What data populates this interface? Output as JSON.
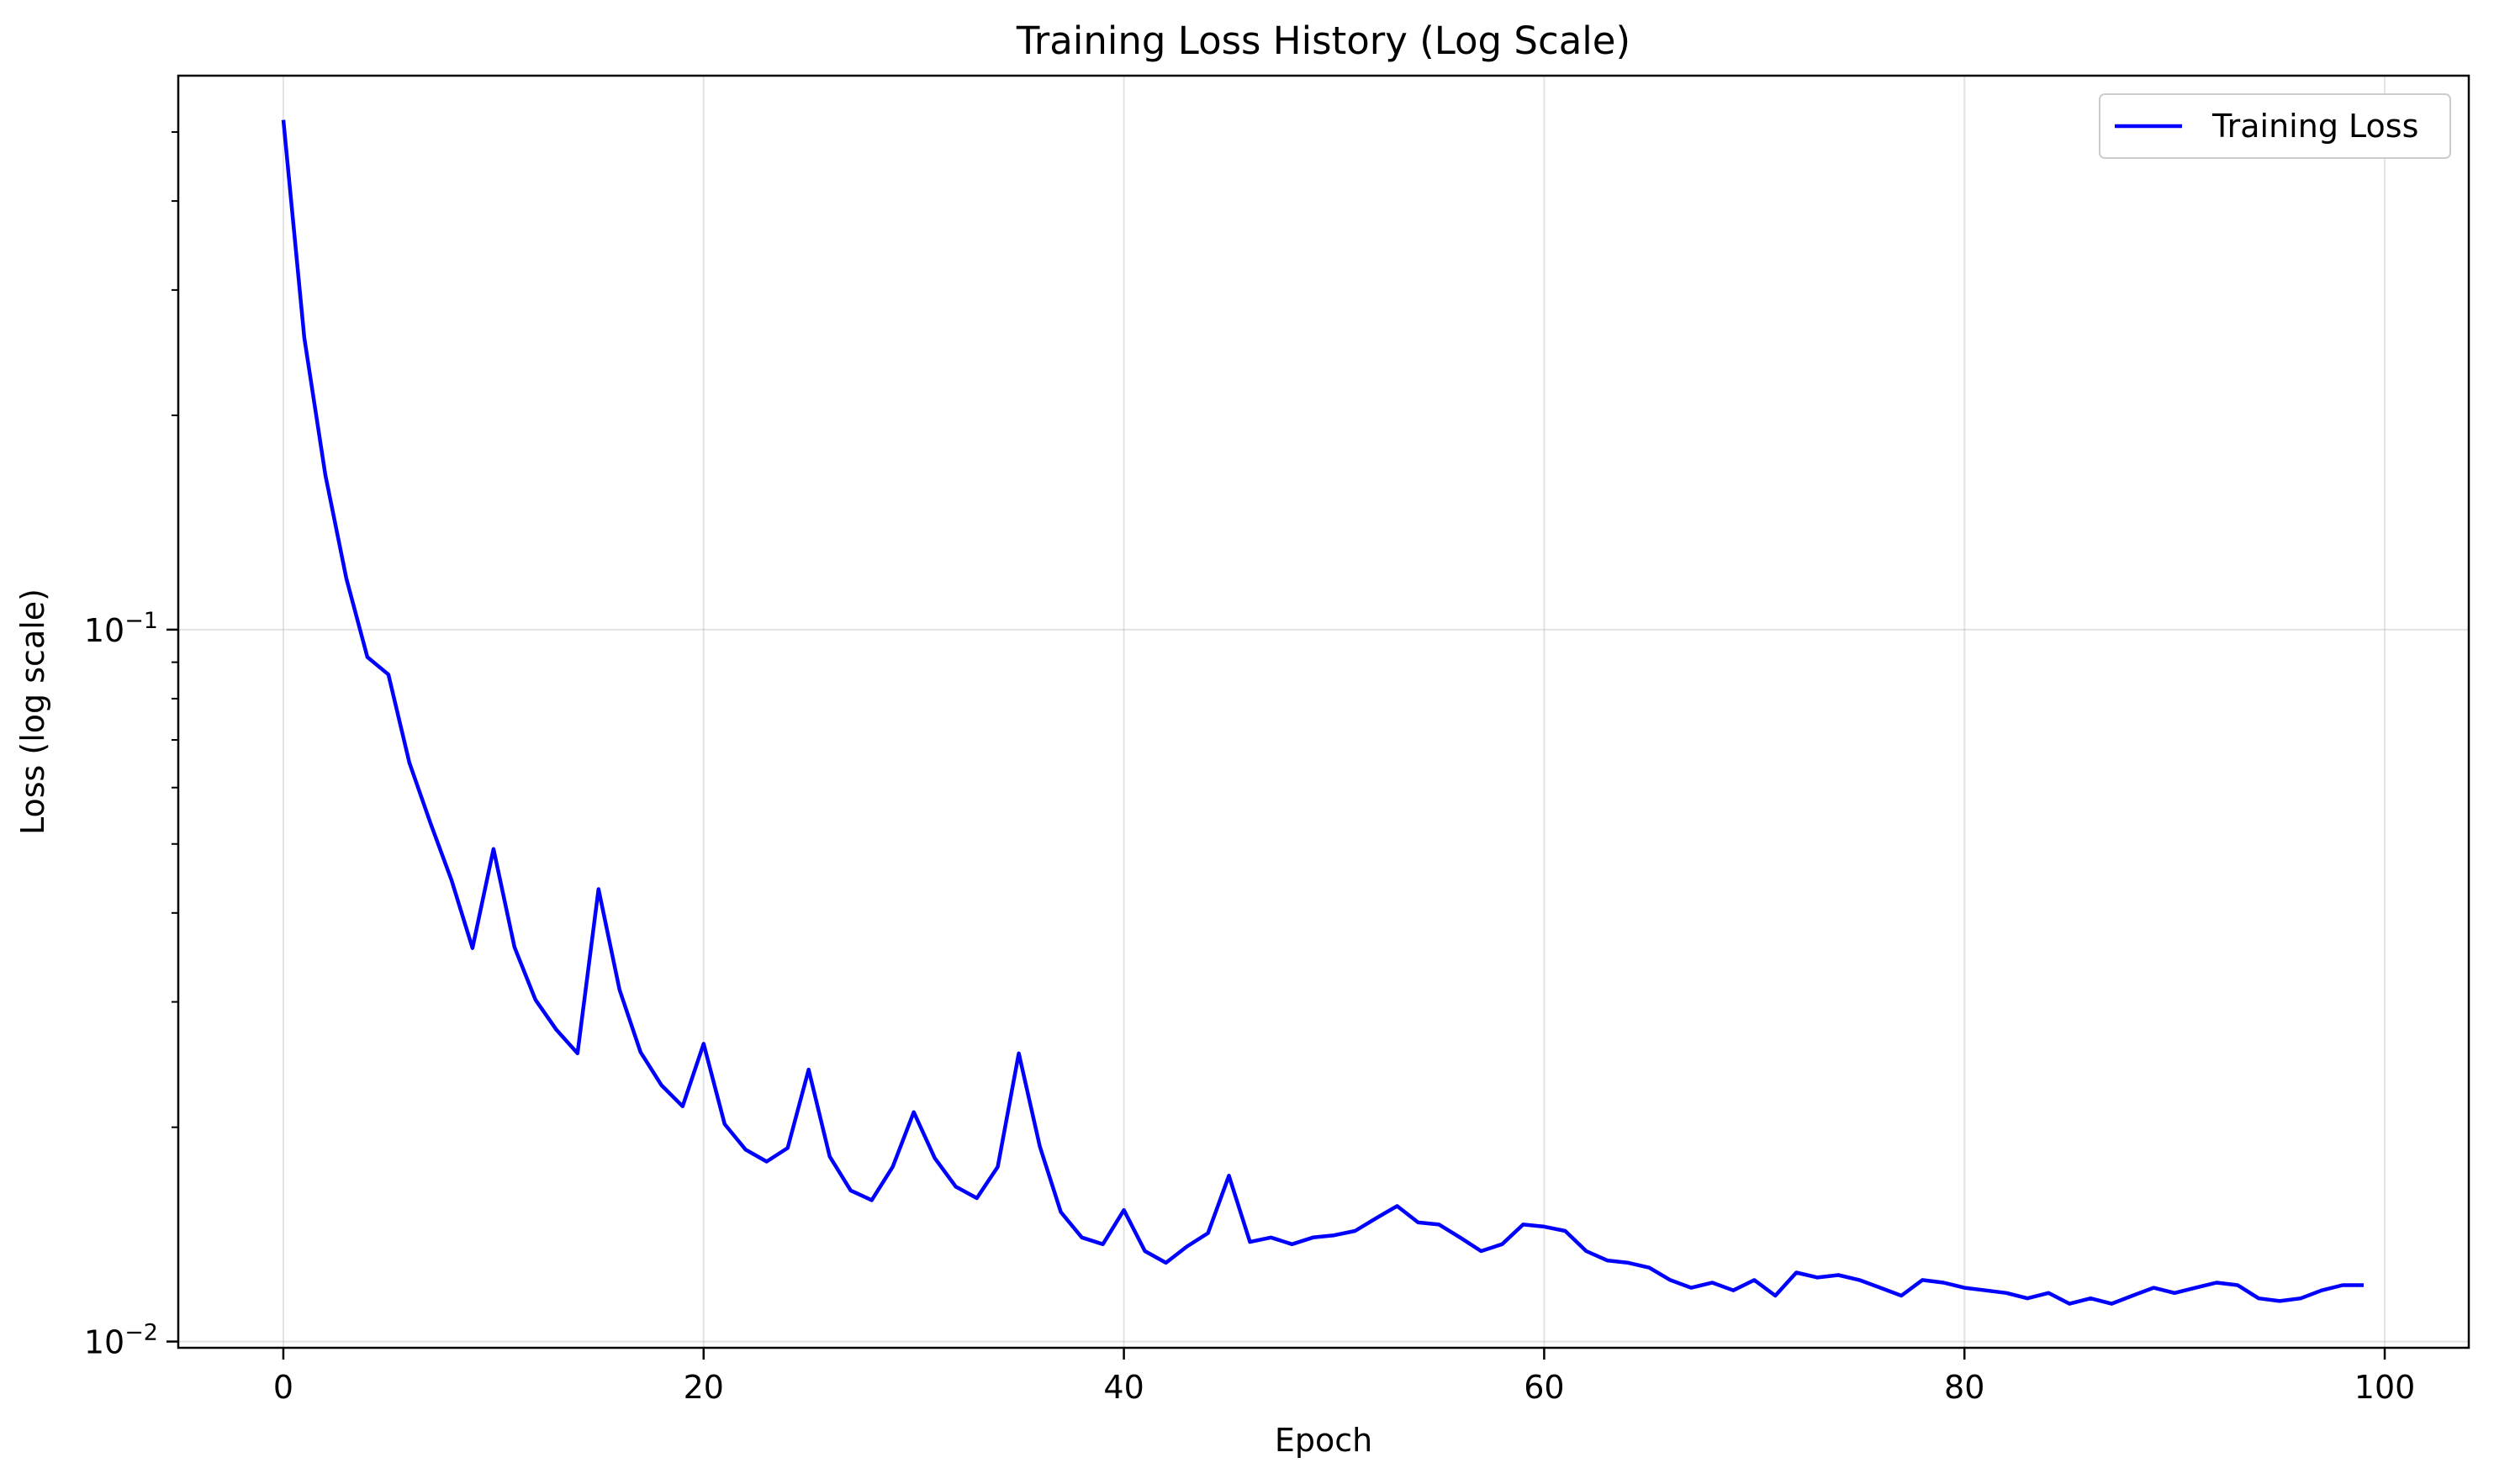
{
  "chart_data": {
    "type": "line",
    "title": "Training Loss History (Log Scale)",
    "xlabel": "Epoch",
    "ylabel": "Loss (log scale)",
    "y_scale": "log",
    "xlim": [
      -5,
      104
    ],
    "ylim": [
      0.0098,
      0.6
    ],
    "x_ticks": [
      0,
      20,
      40,
      60,
      80,
      100
    ],
    "y_ticks": [
      {
        "value": 0.1,
        "base": "10",
        "exp": "−1"
      },
      {
        "value": 0.01,
        "base": "10",
        "exp": "−2"
      }
    ],
    "grid": true,
    "legend_position": "top-right",
    "series": [
      {
        "name": "Training Loss",
        "color": "#0000ff",
        "x": [
          0,
          1,
          2,
          3,
          4,
          5,
          6,
          7,
          8,
          9,
          10,
          11,
          12,
          13,
          14,
          15,
          16,
          17,
          18,
          19,
          20,
          21,
          22,
          23,
          24,
          25,
          26,
          27,
          28,
          29,
          30,
          31,
          32,
          33,
          34,
          35,
          36,
          37,
          38,
          39,
          40,
          41,
          42,
          43,
          44,
          45,
          46,
          47,
          48,
          49,
          50,
          51,
          52,
          53,
          54,
          55,
          56,
          57,
          58,
          59,
          60,
          61,
          62,
          63,
          64,
          65,
          66,
          67,
          68,
          69,
          70,
          71,
          72,
          73,
          74,
          75,
          76,
          77,
          78,
          79,
          80,
          81,
          82,
          83,
          84,
          85,
          86,
          87,
          88,
          89,
          90,
          91,
          92,
          93,
          94,
          95,
          96,
          97,
          98,
          99
        ],
        "values": [
          0.52,
          0.257,
          0.165,
          0.118,
          0.0915,
          0.0865,
          0.065,
          0.0535,
          0.0445,
          0.0357,
          0.0492,
          0.0358,
          0.0302,
          0.0274,
          0.0254,
          0.0432,
          0.0312,
          0.0255,
          0.0229,
          0.0214,
          0.0262,
          0.0202,
          0.0186,
          0.0179,
          0.0187,
          0.0241,
          0.0182,
          0.0163,
          0.0158,
          0.0176,
          0.021,
          0.0181,
          0.0165,
          0.0159,
          0.0176,
          0.0254,
          0.0188,
          0.0152,
          0.014,
          0.0137,
          0.0153,
          0.0134,
          0.0129,
          0.0136,
          0.0142,
          0.0171,
          0.0138,
          0.014,
          0.0137,
          0.014,
          0.0141,
          0.0143,
          0.0149,
          0.0155,
          0.0147,
          0.0146,
          0.014,
          0.0134,
          0.0137,
          0.0146,
          0.0145,
          0.0143,
          0.0134,
          0.013,
          0.0129,
          0.0127,
          0.0122,
          0.0119,
          0.0121,
          0.0118,
          0.0122,
          0.0116,
          0.0125,
          0.0123,
          0.0124,
          0.0122,
          0.0119,
          0.0116,
          0.0122,
          0.0121,
          0.0119,
          0.0118,
          0.0117,
          0.0115,
          0.0117,
          0.0113,
          0.0115,
          0.0113,
          0.0116,
          0.0119,
          0.0117,
          0.0119,
          0.0121,
          0.012,
          0.0115,
          0.0114,
          0.0115,
          0.0118,
          0.012,
          0.012
        ]
      }
    ]
  }
}
